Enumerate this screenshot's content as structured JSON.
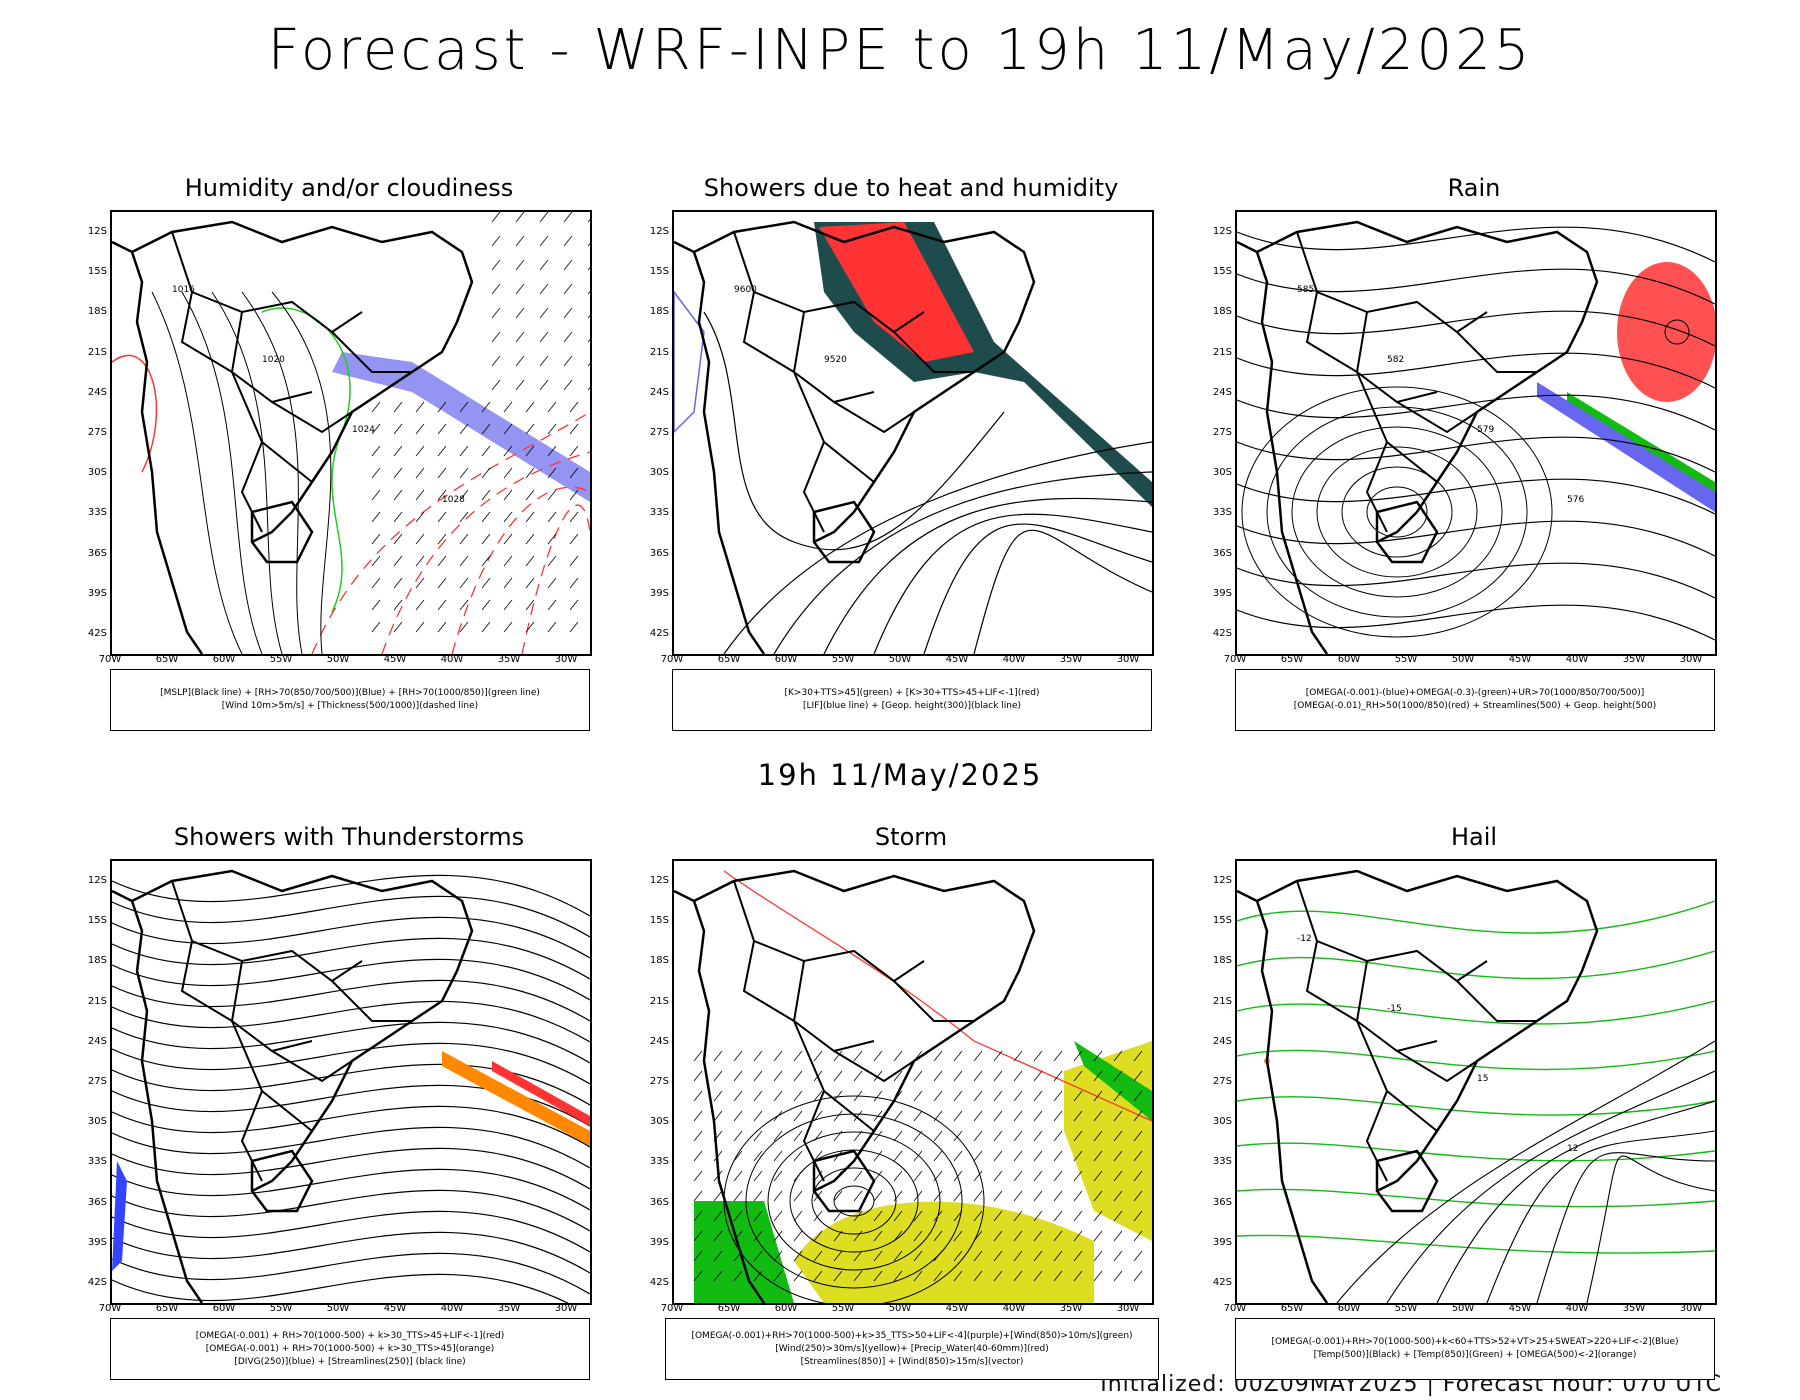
{
  "main_title": "Forecast - WRF-INPE to 19h 11/May/2025",
  "mid_title": "19h 11/May/2025",
  "footer": "Initialized: 00Z09MAY2025 | Forecast hour: 070 UTC",
  "lat_labels": [
    "12S",
    "15S",
    "18S",
    "21S",
    "24S",
    "27S",
    "30S",
    "33S",
    "36S",
    "39S",
    "42S"
  ],
  "lon_labels": [
    "70W",
    "65W",
    "60W",
    "55W",
    "50W",
    "45W",
    "40W",
    "35W",
    "30W"
  ],
  "colors": {
    "rh_blue": "#6666ee",
    "rh_green": "#22cc22",
    "red": "#ff3333",
    "dark_green": "#1e4c4c",
    "orange": "#ff8800",
    "yellow": "#dddd22",
    "storm_green": "#11bb11"
  },
  "panels": [
    {
      "title": "Humidity and/or cloudiness",
      "legend": [
        "[MSLP](Black line) + [RH>70(850/700/500)](Blue) + [RH>70(1000/850)](green line)",
        "[Wind 10m>5m/s] + [Thickness(500/1000)](dashed line)"
      ],
      "contour_labels": [
        "1016",
        "1020",
        "1024",
        "1028"
      ]
    },
    {
      "title": "Showers due to heat and humidity",
      "legend": [
        "[K>30+TTS>45](green) + [K>30+TTS>45+LIF<-1](red)",
        "[LIF](blue line) + [Geop. height(300)](black line)"
      ],
      "contour_labels": [
        "9600",
        "9520"
      ]
    },
    {
      "title": "Rain",
      "legend": [
        "[OMEGA(-0.001)-(blue)+OMEGA(-0.3)-(green)+UR>70(1000/850/700/500)]",
        "[OMEGA(-0.01)_RH>50(1000/850)(red) + Streamlines(500) + Geop. height(500)"
      ],
      "contour_labels": [
        "585",
        "582",
        "579",
        "576"
      ]
    },
    {
      "title": "Showers with Thunderstorms",
      "legend": [
        "[OMEGA(-0.001) + RH>70(1000-500) + k>30_TTS>45+LIF<-1](red)",
        "[OMEGA(-0.001) + RH>70(1000-500) + k>30_TTS>45](orange)",
        "[DIVG(250)](blue) + [Streamlines(250)] (black line)"
      ],
      "contour_labels": []
    },
    {
      "title": "Storm",
      "legend": [
        "[OMEGA(-0.001)+RH>70(1000-500)+k>35_TTS>50+LIF<-4](purple)+[Wind(850)>10m/s](green)",
        "[Wind(250)>30m/s](yellow)+ [Precip_Water(40-60mm)](red)",
        "[Streamlines(850)] + [Wind(850)>15m/s](vector)"
      ],
      "contour_labels": []
    },
    {
      "title": "Hail",
      "legend": [
        "[OMEGA(-0.001)+RH>70(1000-500)+k<60+TTS>52+VT>25+SWEAT>220+LIF<-2](Blue)",
        "[Temp(500)](Black) + [Temp(850)](Green) + [OMEGA(500)<-2](orange)"
      ],
      "contour_labels": [
        "-12",
        "-15",
        "15",
        "12"
      ]
    }
  ]
}
